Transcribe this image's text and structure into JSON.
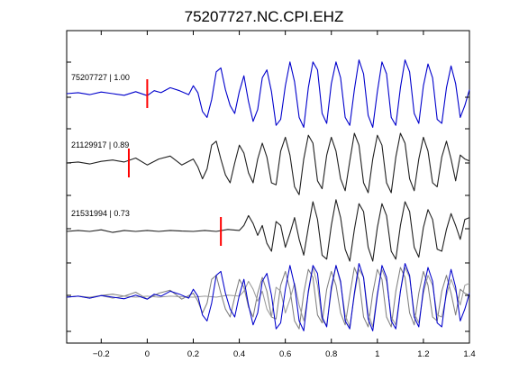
{
  "chart_data": {
    "type": "line",
    "title": "75207727.NC.CPI.EHZ",
    "xlabel": "",
    "ylabel": "",
    "xlim": [
      -0.35,
      1.4
    ],
    "x_ticks": [
      -0.2,
      0,
      0.2,
      0.4,
      0.6,
      0.8,
      1,
      1.2,
      1.4
    ],
    "x_tick_labels": [
      "−0.2",
      "0",
      "0.2",
      "0.4",
      "0.6",
      "0.8",
      "1",
      "1.2",
      "1.4"
    ],
    "grid": false,
    "traces": [
      {
        "label": "75207727 | 1.00",
        "color": "#0000cc",
        "pick_time": 0.0,
        "pick_color": "#ff0000",
        "waveform": {
          "t": [
            -0.35,
            -0.3,
            -0.25,
            -0.2,
            -0.15,
            -0.1,
            -0.05,
            0.0,
            0.03,
            0.06,
            0.1,
            0.14,
            0.18,
            0.2,
            0.22,
            0.24,
            0.26,
            0.28,
            0.3,
            0.32,
            0.34,
            0.36,
            0.38,
            0.4,
            0.42,
            0.44,
            0.46,
            0.48,
            0.5,
            0.52,
            0.54,
            0.56,
            0.58,
            0.6,
            0.62,
            0.64,
            0.66,
            0.68,
            0.7,
            0.72,
            0.74,
            0.76,
            0.78,
            0.8,
            0.82,
            0.84,
            0.86,
            0.88,
            0.9,
            0.92,
            0.94,
            0.96,
            0.98,
            1.0,
            1.02,
            1.04,
            1.06,
            1.08,
            1.1,
            1.12,
            1.14,
            1.16,
            1.18,
            1.2,
            1.22,
            1.24,
            1.26,
            1.28,
            1.3,
            1.32,
            1.34,
            1.36,
            1.38,
            1.4
          ],
          "amp": [
            0,
            0.05,
            -0.05,
            0.08,
            0,
            -0.08,
            0.1,
            -0.1,
            0.15,
            0.05,
            0.3,
            0.15,
            -0.05,
            0.4,
            0.05,
            -0.9,
            -1.2,
            -0.3,
            1.1,
            1.3,
            0.2,
            -0.6,
            -1.0,
            0.1,
            0.9,
            -0.4,
            -1.4,
            -0.8,
            0.8,
            1.2,
            0.1,
            -1.6,
            -1.3,
            0.4,
            1.6,
            0.6,
            -1.2,
            -1.7,
            0.3,
            1.6,
            1.2,
            -1.0,
            -1.5,
            0.5,
            1.6,
            0.8,
            -1.2,
            -1.6,
            0.2,
            1.7,
            1.0,
            -1.1,
            -1.7,
            0.1,
            1.6,
            1.0,
            -1.2,
            -1.6,
            0.3,
            1.7,
            1.1,
            -1.0,
            -1.5,
            0.4,
            1.5,
            0.8,
            -1.3,
            -1.5,
            0.3,
            1.4,
            0.5,
            -1.2,
            -0.6,
            0.2
          ]
        }
      },
      {
        "label": "21129917 | 0.89",
        "color": "#202020",
        "pick_time": -0.08,
        "pick_color": "#ff0000",
        "waveform": {
          "t": [
            -0.35,
            -0.3,
            -0.25,
            -0.2,
            -0.15,
            -0.1,
            -0.05,
            0.0,
            0.05,
            0.1,
            0.15,
            0.2,
            0.22,
            0.24,
            0.26,
            0.28,
            0.3,
            0.32,
            0.34,
            0.36,
            0.38,
            0.4,
            0.42,
            0.44,
            0.46,
            0.48,
            0.5,
            0.52,
            0.54,
            0.56,
            0.58,
            0.6,
            0.62,
            0.64,
            0.66,
            0.68,
            0.7,
            0.72,
            0.74,
            0.76,
            0.78,
            0.8,
            0.82,
            0.84,
            0.86,
            0.88,
            0.9,
            0.92,
            0.94,
            0.96,
            0.98,
            1.0,
            1.02,
            1.04,
            1.06,
            1.08,
            1.1,
            1.12,
            1.14,
            1.16,
            1.18,
            1.2,
            1.22,
            1.24,
            1.26,
            1.28,
            1.3,
            1.32,
            1.34,
            1.36,
            1.38,
            1.4
          ],
          "amp": [
            0,
            0.05,
            -0.05,
            0.08,
            0.15,
            0.05,
            0.25,
            -0.1,
            0.2,
            0.35,
            -0.1,
            0.2,
            -0.2,
            -0.8,
            -0.3,
            0.9,
            1.1,
            0.2,
            -0.6,
            -1.0,
            0.0,
            0.9,
            0.5,
            -0.5,
            -1.0,
            0.2,
            1.0,
            0.3,
            -1.0,
            -1.1,
            0.6,
            1.3,
            0.4,
            -1.2,
            -1.6,
            0.2,
            1.4,
            1.0,
            -0.9,
            -1.3,
            0.4,
            1.3,
            0.6,
            -0.8,
            -1.4,
            0.1,
            1.5,
            0.9,
            -1.0,
            -1.5,
            0.2,
            1.4,
            0.9,
            -1.0,
            -1.5,
            0.3,
            1.5,
            1.0,
            -0.8,
            -1.4,
            0.2,
            1.3,
            0.6,
            -1.0,
            -1.2,
            0.3,
            1.1,
            0.2,
            -0.9,
            0.4,
            0.2,
            0.1
          ]
        }
      },
      {
        "label": "21531994 | 0.73",
        "color": "#202020",
        "pick_time": 0.32,
        "pick_color": "#ff0000",
        "waveform": {
          "t": [
            -0.35,
            -0.3,
            -0.25,
            -0.2,
            -0.15,
            -0.1,
            -0.05,
            0.0,
            0.05,
            0.1,
            0.15,
            0.2,
            0.25,
            0.3,
            0.35,
            0.4,
            0.42,
            0.44,
            0.46,
            0.48,
            0.5,
            0.52,
            0.54,
            0.56,
            0.58,
            0.6,
            0.62,
            0.64,
            0.66,
            0.68,
            0.7,
            0.72,
            0.74,
            0.76,
            0.78,
            0.8,
            0.82,
            0.84,
            0.86,
            0.88,
            0.9,
            0.92,
            0.94,
            0.96,
            0.98,
            1.0,
            1.02,
            1.04,
            1.06,
            1.08,
            1.1,
            1.12,
            1.14,
            1.16,
            1.18,
            1.2,
            1.22,
            1.24,
            1.26,
            1.28,
            1.3,
            1.32,
            1.34,
            1.36,
            1.38,
            1.4
          ],
          "amp": [
            0,
            0.05,
            0.0,
            0.08,
            -0.05,
            0.05,
            0.0,
            0.05,
            0.0,
            0.05,
            0.02,
            0.0,
            0.05,
            0.0,
            0.1,
            0.05,
            0.3,
            0.8,
            0.4,
            -0.2,
            0.3,
            -0.6,
            -1.0,
            0.5,
            0.3,
            -0.8,
            -0.1,
            0.7,
            -0.4,
            -1.2,
            0.2,
            1.5,
            0.6,
            -1.2,
            -1.4,
            0.3,
            1.6,
            0.7,
            -0.9,
            -1.5,
            0.1,
            1.4,
            1.0,
            -0.8,
            -1.5,
            0.2,
            1.4,
            0.8,
            -1.0,
            -1.4,
            0.3,
            1.5,
            1.0,
            -0.8,
            -1.3,
            0.2,
            1.1,
            0.6,
            -0.9,
            -1.0,
            0.1,
            0.9,
            0.3,
            -0.4,
            0.6,
            0.7
          ]
        }
      }
    ]
  }
}
